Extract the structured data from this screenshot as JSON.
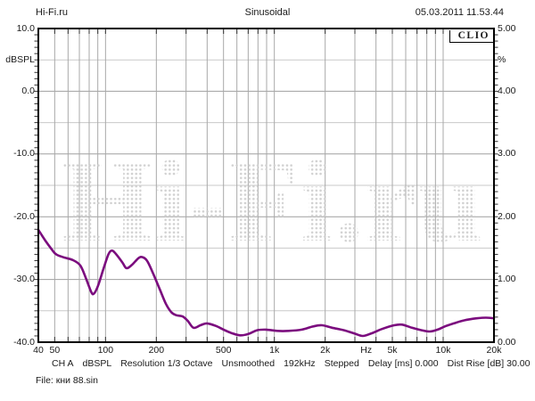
{
  "header": {
    "source": "Hi-Fi.ru",
    "title": "Sinusoidal",
    "timestamp": "05.03.2011 11.53.44"
  },
  "brand": {
    "label": "CLIO"
  },
  "watermark": {
    "text": "Hi-Fi.ru",
    "dot_color": "#d0d0d0"
  },
  "status_bar": {
    "segments": [
      "CH A",
      "dBSPL",
      "Resolution 1/3 Octave",
      "Unsmoothed",
      "192kHz",
      "Stepped",
      "Delay [ms] 0.000",
      "Dist Rise [dB] 30.00"
    ]
  },
  "file_line": {
    "label": "File: кни 88.sin"
  },
  "colors": {
    "curve": "#7b0c7e",
    "grid_major": "#9f9f9f",
    "grid_minor": "#c9c9c9",
    "grid_vertical": "#a9a9a9",
    "border": "#000000",
    "tick": "#333333",
    "text": "#1a1a1a"
  },
  "chart_data": {
    "type": "line",
    "title": "Sinusoidal",
    "legend": "none",
    "grid": "on",
    "x_axis": {
      "scale": "log",
      "unit": "Hz",
      "min": 40,
      "max": 20000,
      "tick_labels": [
        {
          "label": "40",
          "value": 40
        },
        {
          "label": "50",
          "value": 50
        },
        {
          "label": "100",
          "value": 100
        },
        {
          "label": "200",
          "value": 200
        },
        {
          "label": "500",
          "value": 500
        },
        {
          "label": "1k",
          "value": 1000
        },
        {
          "label": "2k",
          "value": 2000
        },
        {
          "label": "Hz",
          "value": 3500,
          "is_unit": true
        },
        {
          "label": "5k",
          "value": 5000
        },
        {
          "label": "10k",
          "value": 10000
        },
        {
          "label": "20k",
          "value": 20000
        }
      ],
      "grid_values": [
        50,
        60,
        70,
        80,
        90,
        100,
        200,
        300,
        400,
        500,
        600,
        700,
        800,
        900,
        1000,
        2000,
        3000,
        4000,
        5000,
        6000,
        7000,
        8000,
        9000,
        10000
      ]
    },
    "y_axis_left": {
      "unit": "dBSPL",
      "min": -40,
      "max": 10,
      "tick_labels": [
        {
          "label": "10.0",
          "value": 10
        },
        {
          "label": "dBSPL",
          "value": 5,
          "is_unit": true
        },
        {
          "label": "0.0",
          "value": 0
        },
        {
          "label": "-10.0",
          "value": -10
        },
        {
          "label": "-20.0",
          "value": -20
        },
        {
          "label": "-30.0",
          "value": -30
        },
        {
          "label": "-40.0",
          "value": -40
        }
      ],
      "grid_major": [
        0,
        -10,
        -20,
        -30
      ],
      "grid_minor": [
        5,
        -5,
        -15,
        -25,
        -35
      ]
    },
    "y_axis_right": {
      "unit": "%",
      "min": 0,
      "max": 5,
      "tick_labels": [
        {
          "label": "5.00",
          "value": 5
        },
        {
          "label": "%",
          "value": 4.5,
          "is_unit": true
        },
        {
          "label": "4.00",
          "value": 4
        },
        {
          "label": "3.00",
          "value": 3
        },
        {
          "label": "2.00",
          "value": 2
        },
        {
          "label": "1.00",
          "value": 1
        },
        {
          "label": "0.00",
          "value": 0
        }
      ]
    },
    "series": [
      {
        "name": "CH A distortion (dBSPL, Dist Rise 30 dB)",
        "color": "#7b0c7e",
        "points": [
          [
            40,
            -22.1
          ],
          [
            44,
            -23.8
          ],
          [
            48,
            -25.2
          ],
          [
            51,
            -26.0
          ],
          [
            57,
            -26.5
          ],
          [
            64,
            -26.9
          ],
          [
            71,
            -27.8
          ],
          [
            77,
            -30.0
          ],
          [
            82,
            -31.9
          ],
          [
            85,
            -32.3
          ],
          [
            90,
            -31.1
          ],
          [
            97,
            -28.4
          ],
          [
            104,
            -26.0
          ],
          [
            109,
            -25.4
          ],
          [
            115,
            -25.9
          ],
          [
            126,
            -27.3
          ],
          [
            133,
            -28.2
          ],
          [
            143,
            -27.7
          ],
          [
            154,
            -26.8
          ],
          [
            163,
            -26.4
          ],
          [
            176,
            -27.0
          ],
          [
            191,
            -29.0
          ],
          [
            209,
            -31.5
          ],
          [
            228,
            -33.9
          ],
          [
            245,
            -35.2
          ],
          [
            262,
            -35.7
          ],
          [
            286,
            -35.9
          ],
          [
            307,
            -36.6
          ],
          [
            332,
            -37.7
          ],
          [
            365,
            -37.3
          ],
          [
            398,
            -37.0
          ],
          [
            450,
            -37.4
          ],
          [
            500,
            -38.0
          ],
          [
            565,
            -38.6
          ],
          [
            626,
            -38.9
          ],
          [
            700,
            -38.7
          ],
          [
            790,
            -38.1
          ],
          [
            893,
            -38.0
          ],
          [
            1040,
            -38.2
          ],
          [
            1215,
            -38.2
          ],
          [
            1455,
            -38.0
          ],
          [
            1690,
            -37.5
          ],
          [
            1910,
            -37.3
          ],
          [
            2200,
            -37.7
          ],
          [
            2590,
            -38.1
          ],
          [
            2970,
            -38.6
          ],
          [
            3340,
            -39.0
          ],
          [
            3760,
            -38.6
          ],
          [
            4340,
            -37.9
          ],
          [
            5120,
            -37.3
          ],
          [
            5720,
            -37.2
          ],
          [
            6530,
            -37.7
          ],
          [
            7460,
            -38.1
          ],
          [
            8320,
            -38.3
          ],
          [
            9270,
            -38.0
          ],
          [
            10200,
            -37.5
          ],
          [
            11560,
            -37.0
          ],
          [
            13400,
            -36.5
          ],
          [
            15800,
            -36.2
          ],
          [
            17900,
            -36.1
          ],
          [
            20000,
            -36.2
          ]
        ]
      }
    ]
  }
}
